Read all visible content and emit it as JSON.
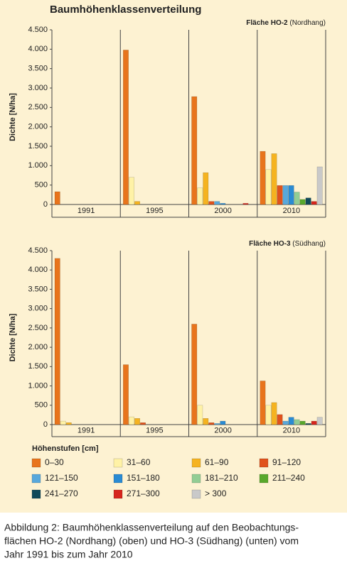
{
  "title": "Baumhöhenklassenverteilung",
  "chart_data": [
    {
      "type": "bar",
      "subtitle_bold": "Fläche HO-2",
      "subtitle": "(Nordhang)",
      "ylabel": "Dichte [N/ha]",
      "categories": [
        "1991",
        "1995",
        "2000",
        "2010"
      ],
      "ylim": [
        0,
        4500
      ],
      "yticks": [
        0,
        500,
        {
          "value": 1000,
          "label": "1.000"
        },
        {
          "value": 1500,
          "label": "1.500"
        },
        {
          "value": 2000,
          "label": "2.000"
        },
        {
          "value": 2500,
          "label": "2.500"
        },
        {
          "value": 3000,
          "label": "3.000"
        },
        {
          "value": 3500,
          "label": "3.500"
        },
        {
          "value": 4000,
          "label": "4.000"
        },
        {
          "value": 4500,
          "label": "4.500"
        }
      ],
      "series": [
        {
          "name": "0–30",
          "color": "#e8741c",
          "values": [
            330,
            3980,
            2780,
            1370
          ]
        },
        {
          "name": "31–60",
          "color": "#fff2a6",
          "values": [
            0,
            700,
            430,
            900
          ]
        },
        {
          "name": "61–90",
          "color": "#f5b320",
          "values": [
            0,
            80,
            820,
            1310
          ]
        },
        {
          "name": "91–120",
          "color": "#e0521c",
          "values": [
            0,
            0,
            80,
            490
          ]
        },
        {
          "name": "121–150",
          "color": "#58a8dc",
          "values": [
            0,
            0,
            80,
            490
          ]
        },
        {
          "name": "151–180",
          "color": "#2a8bd3",
          "values": [
            0,
            0,
            30,
            490
          ]
        },
        {
          "name": "181–210",
          "color": "#92cd94",
          "values": [
            0,
            0,
            0,
            320
          ]
        },
        {
          "name": "211–240",
          "color": "#58a82c",
          "values": [
            0,
            0,
            0,
            130
          ]
        },
        {
          "name": "241–270",
          "color": "#114a5a",
          "values": [
            0,
            0,
            0,
            170
          ]
        },
        {
          "name": "271–300",
          "color": "#d6251d",
          "values": [
            0,
            0,
            30,
            80
          ]
        },
        {
          "name": "> 300",
          "color": "#c9c9c9",
          "values": [
            0,
            0,
            0,
            970
          ]
        }
      ]
    },
    {
      "type": "bar",
      "subtitle_bold": "Fläche HO-3",
      "subtitle": "(Südhang)",
      "ylabel": "Dichte [N/ha]",
      "categories": [
        "1991",
        "1995",
        "2000",
        "2010"
      ],
      "ylim": [
        0,
        4500
      ],
      "yticks": [
        0,
        500,
        {
          "value": 1000,
          "label": "1.000"
        },
        {
          "value": 1500,
          "label": "1.500"
        },
        {
          "value": 2000,
          "label": "2.000"
        },
        {
          "value": 2500,
          "label": "2.500"
        },
        {
          "value": 3000,
          "label": "3.000"
        },
        {
          "value": 3500,
          "label": "3.500"
        },
        {
          "value": 4000,
          "label": "4.000"
        },
        {
          "value": 4500,
          "label": "4.500"
        }
      ],
      "series": [
        {
          "color": "#e8741c",
          "values": [
            4300,
            1550,
            2600,
            1130
          ]
        },
        {
          "color": "#fff2a6",
          "values": [
            90,
            200,
            500,
            500
          ]
        },
        {
          "color": "#f5b320",
          "values": [
            50,
            160,
            160,
            570
          ]
        },
        {
          "color": "#e0521c",
          "values": [
            0,
            50,
            50,
            260
          ]
        },
        {
          "color": "#58a8dc",
          "values": [
            0,
            0,
            30,
            90
          ]
        },
        {
          "color": "#2a8bd3",
          "values": [
            0,
            0,
            90,
            190
          ]
        },
        {
          "color": "#92cd94",
          "values": [
            0,
            0,
            0,
            130
          ]
        },
        {
          "color": "#58a82c",
          "values": [
            0,
            0,
            0,
            90
          ]
        },
        {
          "color": "#114a5a",
          "values": [
            0,
            0,
            0,
            30
          ]
        },
        {
          "color": "#d6251d",
          "values": [
            0,
            0,
            0,
            90
          ]
        },
        {
          "color": "#c9c9c9",
          "values": [
            0,
            0,
            0,
            190
          ]
        }
      ]
    }
  ],
  "legend_title": "Höhenstufen [cm]",
  "caption": [
    "Abbildung 2: Baumhöhenklassenverteilung auf den Beobachtungs-",
    "flächen HO-2 (Nordhang) (oben) und HO-3 (Südhang) (unten) vom",
    "Jahr 1991 bis zum Jahr 2010"
  ]
}
